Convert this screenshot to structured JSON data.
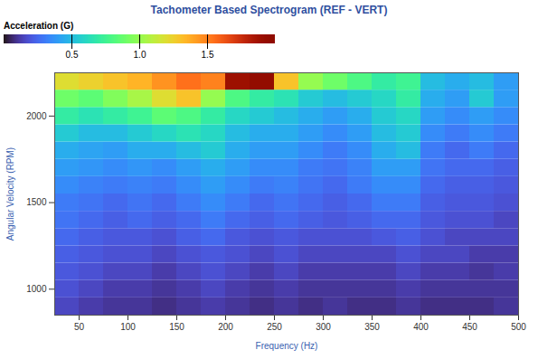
{
  "chart_data": {
    "type": "heatmap",
    "title": "Tachometer Based Spectrogram (REF - VERT)",
    "xlabel": "Frequency (Hz)",
    "ylabel": "Angular Velocity (RPM)",
    "colorbar_label": "Acceleration (G)",
    "color": "turbo",
    "xlim": [
      25,
      500
    ],
    "xticks": [
      50,
      100,
      150,
      200,
      250,
      300,
      350,
      400,
      450,
      500
    ],
    "ylim": [
      850,
      2250
    ],
    "yticks": [
      1000,
      1500,
      2000
    ],
    "colorbar_lim": [
      0,
      2
    ],
    "colorbar_ticks": [
      0.5,
      {
        "value": 1,
        "label": "1.0"
      },
      1.5
    ],
    "x_bins": [
      25,
      50,
      75,
      100,
      125,
      150,
      175,
      200,
      225,
      250,
      275,
      300,
      325,
      350,
      375,
      400,
      425,
      450,
      475,
      500
    ],
    "y_bins": [
      850,
      950,
      1050,
      1150,
      1250,
      1350,
      1450,
      1550,
      1650,
      1750,
      1850,
      1950,
      2050,
      2150,
      2250
    ],
    "values": [
      [
        0.15,
        0.12,
        0.1,
        0.1,
        0.08,
        0.1,
        0.12,
        0.1,
        0.08,
        0.1,
        0.08,
        0.1,
        0.08,
        0.08,
        0.1,
        0.08,
        0.08,
        0.08,
        0.1
      ],
      [
        0.18,
        0.15,
        0.12,
        0.12,
        0.1,
        0.12,
        0.15,
        0.12,
        0.1,
        0.12,
        0.1,
        0.1,
        0.1,
        0.1,
        0.12,
        0.1,
        0.1,
        0.1,
        0.1
      ],
      [
        0.2,
        0.18,
        0.15,
        0.15,
        0.12,
        0.15,
        0.18,
        0.15,
        0.12,
        0.15,
        0.12,
        0.12,
        0.12,
        0.12,
        0.15,
        0.12,
        0.12,
        0.1,
        0.12
      ],
      [
        0.22,
        0.2,
        0.18,
        0.18,
        0.15,
        0.18,
        0.2,
        0.18,
        0.15,
        0.18,
        0.15,
        0.15,
        0.15,
        0.15,
        0.18,
        0.15,
        0.15,
        0.12,
        0.12
      ],
      [
        0.25,
        0.22,
        0.2,
        0.2,
        0.18,
        0.22,
        0.25,
        0.2,
        0.18,
        0.2,
        0.18,
        0.18,
        0.18,
        0.2,
        0.22,
        0.18,
        0.15,
        0.15,
        0.15
      ],
      [
        0.28,
        0.25,
        0.22,
        0.25,
        0.22,
        0.25,
        0.3,
        0.25,
        0.22,
        0.25,
        0.22,
        0.2,
        0.22,
        0.25,
        0.25,
        0.2,
        0.18,
        0.18,
        0.15
      ],
      [
        0.3,
        0.28,
        0.25,
        0.28,
        0.25,
        0.3,
        0.35,
        0.3,
        0.25,
        0.28,
        0.25,
        0.22,
        0.25,
        0.3,
        0.3,
        0.22,
        0.2,
        0.2,
        0.18
      ],
      [
        0.35,
        0.32,
        0.3,
        0.32,
        0.3,
        0.35,
        0.4,
        0.35,
        0.3,
        0.32,
        0.28,
        0.25,
        0.3,
        0.35,
        0.35,
        0.25,
        0.22,
        0.22,
        0.2
      ],
      [
        0.4,
        0.38,
        0.35,
        0.38,
        0.35,
        0.4,
        0.45,
        0.4,
        0.35,
        0.35,
        0.3,
        0.28,
        0.32,
        0.4,
        0.4,
        0.28,
        0.25,
        0.25,
        0.22
      ],
      [
        0.45,
        0.42,
        0.4,
        0.45,
        0.45,
        0.5,
        0.55,
        0.45,
        0.4,
        0.4,
        0.35,
        0.3,
        0.35,
        0.45,
        0.5,
        0.3,
        0.25,
        0.3,
        0.25
      ],
      [
        0.55,
        0.5,
        0.5,
        0.55,
        0.6,
        0.65,
        0.6,
        0.5,
        0.45,
        0.45,
        0.4,
        0.35,
        0.4,
        0.5,
        0.55,
        0.35,
        0.3,
        0.35,
        0.3
      ],
      [
        0.7,
        0.65,
        0.7,
        0.75,
        0.85,
        0.8,
        0.7,
        0.6,
        0.55,
        0.5,
        0.45,
        0.4,
        0.45,
        0.55,
        0.6,
        0.4,
        0.35,
        0.4,
        0.35
      ],
      [
        0.9,
        0.85,
        0.95,
        1.05,
        1.2,
        1.3,
        1.0,
        0.8,
        0.7,
        0.65,
        0.55,
        0.5,
        0.55,
        0.6,
        0.7,
        0.45,
        0.4,
        0.55,
        0.4
      ],
      [
        1.2,
        1.25,
        1.3,
        1.35,
        1.45,
        1.55,
        1.5,
        1.9,
        1.95,
        1.3,
        1.0,
        0.9,
        0.8,
        0.7,
        0.75,
        0.5,
        0.45,
        0.5,
        0.4
      ]
    ]
  }
}
